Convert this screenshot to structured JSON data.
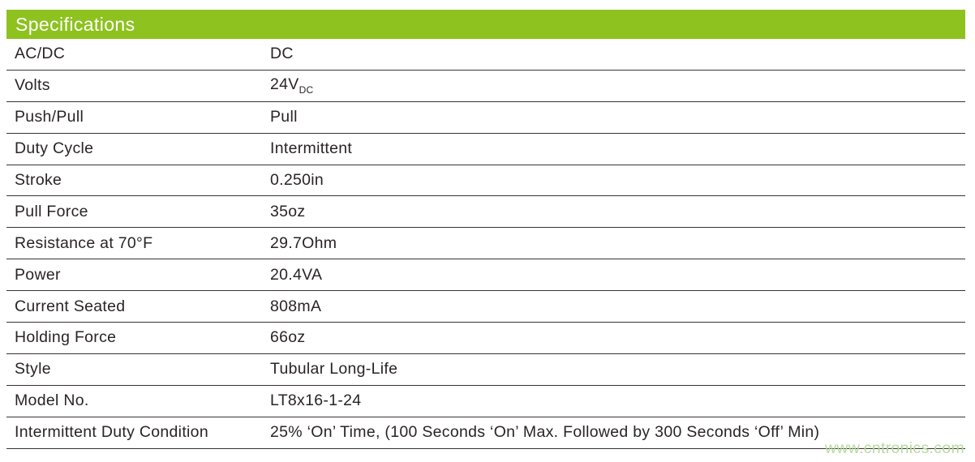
{
  "header": {
    "title": "Specifications"
  },
  "colors": {
    "header_bg": "#8dc21f",
    "header_text": "#ffffff",
    "body_text": "#2a2425",
    "row_line": "#383334",
    "watermark_text": "#b7db9e"
  },
  "rows": [
    {
      "label": "AC/DC",
      "value": "DC"
    },
    {
      "label": "Volts",
      "value": "24V",
      "value_sub": "DC"
    },
    {
      "label": "Push/Pull",
      "value": "Pull"
    },
    {
      "label": "Duty Cycle",
      "value": "Intermittent"
    },
    {
      "label": "Stroke",
      "value": "0.250in"
    },
    {
      "label": "Pull Force",
      "value": "35oz"
    },
    {
      "label": "Resistance at 70°F",
      "value": "29.7Ohm"
    },
    {
      "label": "Power",
      "value": "20.4VA"
    },
    {
      "label": "Current Seated",
      "value": "808mA"
    },
    {
      "label": "Holding Force",
      "value": "66oz"
    },
    {
      "label": "Style",
      "value": "Tubular Long-Life"
    },
    {
      "label": "Model No.",
      "value": "LT8x16-1-24"
    },
    {
      "label": "Intermittent Duty Condition",
      "value": "25% ‘On’ Time, (100 Seconds ‘On’ Max. Followed by 300 Seconds ‘Off’ Min)"
    }
  ],
  "watermark": {
    "text": "www.cntronics.com"
  }
}
